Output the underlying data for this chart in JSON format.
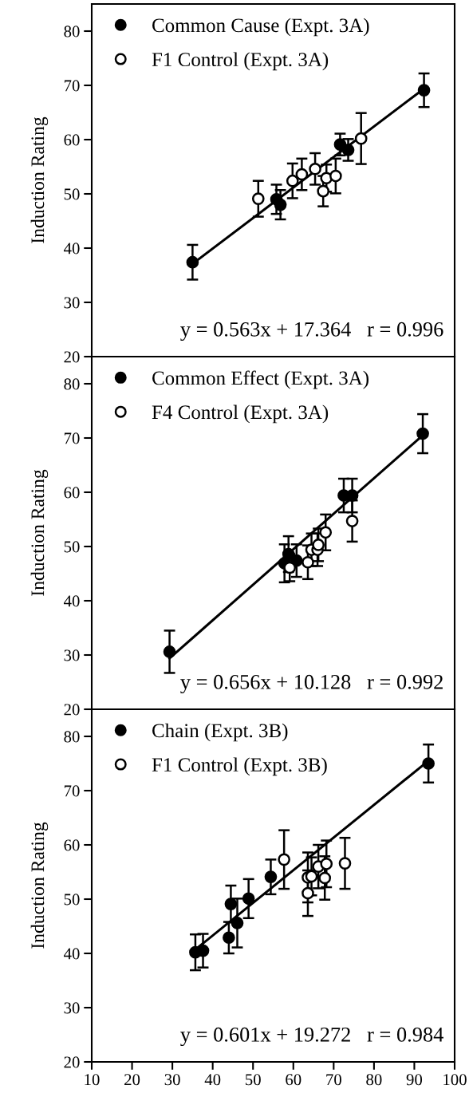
{
  "chart_data": [
    {
      "type": "scatter",
      "ylabel": "Induction Rating",
      "xlim": [
        10,
        100
      ],
      "xticks": [
        10,
        20,
        30,
        40,
        50,
        60,
        70,
        80,
        90,
        100
      ],
      "ylim": [
        20,
        85
      ],
      "yticks": [
        20,
        30,
        40,
        50,
        60,
        70,
        80
      ],
      "tick_labels": "y",
      "marker": "circle",
      "legend": "top left",
      "grid": false,
      "annotations": [
        "y = 0.563x + 17.364   r = 0.996"
      ],
      "series": [
        {
          "name": "Common Cause (Expt. 3A)",
          "color": "#000000",
          "x": [
            35.0,
            55.8,
            56.8,
            71.6,
            73.6,
            92.4
          ],
          "values": [
            37.4,
            49.0,
            48.0,
            59.1,
            58.1,
            69.1
          ],
          "errors": [
            3.2,
            2.7,
            2.7,
            2.0,
            2.0,
            3.1
          ]
        },
        {
          "name": "F1 Control (Expt. 3A)",
          "color": "#ffffff",
          "x": [
            51.3,
            59.8,
            62.1,
            65.4,
            67.4,
            68.2,
            70.5,
            76.8
          ],
          "values": [
            49.1,
            52.4,
            53.6,
            54.6,
            50.5,
            52.9,
            53.3,
            60.2
          ],
          "errors": [
            3.3,
            3.2,
            2.9,
            2.9,
            2.8,
            2.5,
            3.2,
            4.7
          ]
        },
        {
          "type": "line",
          "marker": "none",
          "color": "#000000",
          "x": [
            35.0,
            92.4
          ],
          "values": [
            37.1,
            69.4
          ]
        }
      ]
    },
    {
      "type": "scatter",
      "ylabel": "Induction Rating",
      "xlim": [
        10,
        100
      ],
      "xticks": [
        10,
        20,
        30,
        40,
        50,
        60,
        70,
        80,
        90,
        100
      ],
      "ylim": [
        20,
        85
      ],
      "yticks": [
        20,
        30,
        40,
        50,
        60,
        70,
        80
      ],
      "tick_labels": "y",
      "marker": "circle",
      "legend": "top left",
      "grid": false,
      "annotations": [
        "y = 0.656x + 10.128   r = 0.992"
      ],
      "series": [
        {
          "name": "Common Effect (Expt. 3A)",
          "color": "#000000",
          "x": [
            29.3,
            57.8,
            58.8,
            60.8,
            72.5,
            74.6,
            92.1
          ],
          "values": [
            30.6,
            46.9,
            48.6,
            47.4,
            59.4,
            59.4,
            70.8
          ],
          "errors": [
            3.9,
            3.5,
            3.3,
            3.0,
            3.1,
            3.1,
            3.6
          ]
        },
        {
          "name": "F4 Control (Expt. 3A)",
          "color": "#ffffff",
          "x": [
            59.1,
            63.6,
            64.5,
            66.0,
            66.2,
            68.0,
            74.6
          ],
          "values": [
            46.1,
            47.1,
            49.4,
            49.4,
            50.3,
            52.6,
            54.7
          ],
          "errors": [
            2.5,
            3.1,
            3.0,
            3.0,
            3.0,
            3.3,
            3.8
          ]
        },
        {
          "type": "line",
          "marker": "none",
          "color": "#000000",
          "x": [
            29.3,
            92.1
          ],
          "values": [
            29.4,
            70.5
          ]
        }
      ]
    },
    {
      "type": "scatter",
      "ylabel": "Induction Rating",
      "xlim": [
        10,
        100
      ],
      "xticks": [
        10,
        20,
        30,
        40,
        50,
        60,
        70,
        80,
        90,
        100
      ],
      "ylim": [
        20,
        85
      ],
      "yticks": [
        20,
        30,
        40,
        50,
        60,
        70,
        80
      ],
      "marker": "circle",
      "legend": "top left",
      "grid": false,
      "annotations": [
        "y = 0.601x + 19.272   r = 0.984"
      ],
      "series": [
        {
          "name": "Chain (Expt. 3B)",
          "color": "#000000",
          "x": [
            35.7,
            37.6,
            44.0,
            44.5,
            46.1,
            48.9,
            54.4,
            93.5
          ],
          "values": [
            40.2,
            40.5,
            42.9,
            49.1,
            45.6,
            50.1,
            54.1,
            75.0
          ],
          "errors": [
            3.3,
            3.1,
            2.9,
            3.4,
            4.5,
            3.6,
            3.2,
            3.5
          ]
        },
        {
          "name": "F1 Control (Expt. 3B)",
          "color": "#ffffff",
          "x": [
            57.7,
            63.6,
            63.6,
            64.5,
            66.2,
            67.8,
            68.2,
            72.8
          ],
          "values": [
            57.3,
            54.0,
            51.1,
            54.2,
            56.0,
            53.9,
            56.5,
            56.6
          ],
          "errors": [
            5.4,
            4.6,
            4.2,
            3.5,
            4.0,
            4.0,
            4.3,
            4.7
          ]
        },
        {
          "type": "line",
          "marker": "none",
          "color": "#000000",
          "x": [
            35.7,
            93.5
          ],
          "values": [
            40.7,
            75.5
          ]
        }
      ]
    }
  ]
}
